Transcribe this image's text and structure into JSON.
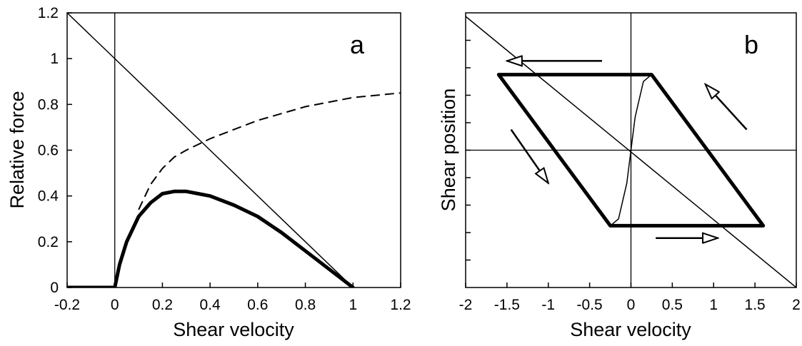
{
  "chart_data": [
    {
      "type": "line",
      "panel_label": "a",
      "xlabel": "Shear velocity",
      "ylabel": "Relative force",
      "xlim": [
        -0.2,
        1.2
      ],
      "ylim": [
        0,
        1.2
      ],
      "x_ticks": [
        "-0.2",
        "0",
        "0.2",
        "0.4",
        "0.6",
        "0.8",
        "1",
        "1.2"
      ],
      "y_ticks": [
        "0",
        "0.2",
        "0.4",
        "0.6",
        "0.8",
        "1",
        "1.2"
      ],
      "grid": false,
      "series": [
        {
          "style": "solid-thin",
          "x": [
            -0.2,
            1.0
          ],
          "y": [
            1.2,
            0.0
          ]
        },
        {
          "style": "dashed",
          "x": [
            0.1,
            0.15,
            0.2,
            0.25,
            0.3,
            0.4,
            0.5,
            0.6,
            0.7,
            0.8,
            0.9,
            1.0,
            1.1,
            1.2
          ],
          "y": [
            0.34,
            0.45,
            0.52,
            0.57,
            0.6,
            0.65,
            0.69,
            0.73,
            0.76,
            0.79,
            0.81,
            0.83,
            0.84,
            0.85
          ]
        },
        {
          "style": "solid-thick",
          "x": [
            -0.2,
            0.0,
            0.02,
            0.05,
            0.1,
            0.15,
            0.2,
            0.25,
            0.3,
            0.35,
            0.4,
            0.5,
            0.6,
            0.7,
            0.8,
            0.9,
            1.0
          ],
          "y": [
            0.0,
            0.0,
            0.1,
            0.2,
            0.31,
            0.37,
            0.41,
            0.42,
            0.42,
            0.41,
            0.4,
            0.36,
            0.31,
            0.24,
            0.16,
            0.08,
            0.0
          ]
        }
      ]
    },
    {
      "type": "line",
      "panel_label": "b",
      "xlabel": "Shear velocity",
      "ylabel": "Shear position",
      "xlim": [
        -2,
        2
      ],
      "ylim": [
        -5,
        5
      ],
      "x_ticks": [
        "-2",
        "-1.5",
        "-1",
        "-0.5",
        "0",
        "0.5",
        "1",
        "1.5",
        "2"
      ],
      "y_tick_values": [
        -4,
        -3,
        -2,
        -1,
        0,
        1,
        2,
        3,
        4
      ],
      "y_tick_labels_shown": false,
      "grid": false,
      "series": [
        {
          "style": "solid-thin",
          "x": [
            -2.0,
            2.0
          ],
          "y": [
            4.87,
            -5.0
          ]
        },
        {
          "style": "solid-thin",
          "x": [
            -0.25,
            -0.15,
            -0.05,
            0.0,
            0.05,
            0.15,
            0.25
          ],
          "y": [
            -2.75,
            -2.5,
            -1.2,
            0.0,
            1.2,
            2.5,
            2.75
          ]
        },
        {
          "style": "solid-thick",
          "x": [
            -1.6,
            0.25,
            1.6,
            -0.25,
            -1.6
          ],
          "y": [
            2.75,
            2.75,
            -2.75,
            -2.75,
            2.75
          ]
        }
      ],
      "arrows": [
        {
          "from": [
            -0.35,
            3.25
          ],
          "to": [
            -1.5,
            3.25
          ]
        },
        {
          "from": [
            1.4,
            0.75
          ],
          "to": [
            0.9,
            2.4
          ]
        },
        {
          "from": [
            -1.45,
            0.75
          ],
          "to": [
            -1.0,
            -1.2
          ]
        },
        {
          "from": [
            0.3,
            -3.2
          ],
          "to": [
            1.05,
            -3.2
          ]
        }
      ]
    }
  ]
}
